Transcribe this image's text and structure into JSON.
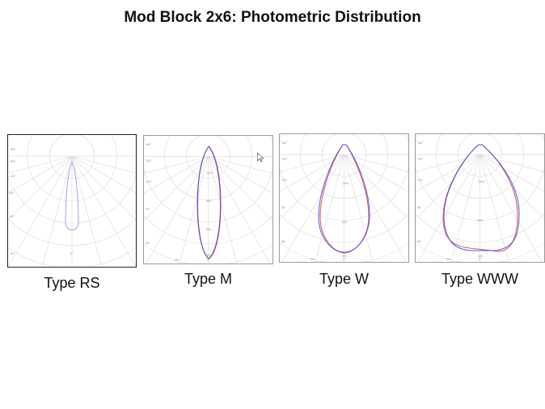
{
  "title": "Mod Block 2x6: Photometric Distribution",
  "colors": {
    "grid": "#dddddd",
    "single_curve": "#a99fd6",
    "blue_curve": "#3a49d8",
    "red_curve": "#e8505f",
    "dark_curve": "#4d3f96"
  },
  "panels": [
    {
      "caption": "Type RS",
      "type": "RS",
      "curves": [
        "single"
      ],
      "tick_labels": [
        "180°",
        "150°",
        "120°",
        "90°",
        "60°",
        "30°",
        "0°"
      ]
    },
    {
      "caption": "Type M",
      "type": "M",
      "curves": [
        "red",
        "blue"
      ],
      "tick_labels": [
        "180°",
        "150°",
        "120°",
        "90°",
        "60°",
        "30°",
        "0°",
        "300",
        "600",
        "900",
        "1200"
      ]
    },
    {
      "caption": "Type W",
      "type": "W",
      "curves": [
        "red",
        "blue"
      ],
      "tick_labels": [
        "180°",
        "150°",
        "120°",
        "90°",
        "60°",
        "30°",
        "0°",
        "400",
        "800",
        "1200"
      ]
    },
    {
      "caption": "Type WWW",
      "type": "WWW",
      "curves": [
        "red",
        "blue"
      ],
      "tick_labels": [
        "180°",
        "150°",
        "120°",
        "90°",
        "60°",
        "30°",
        "0°",
        "400",
        "800",
        "1200"
      ]
    }
  ]
}
